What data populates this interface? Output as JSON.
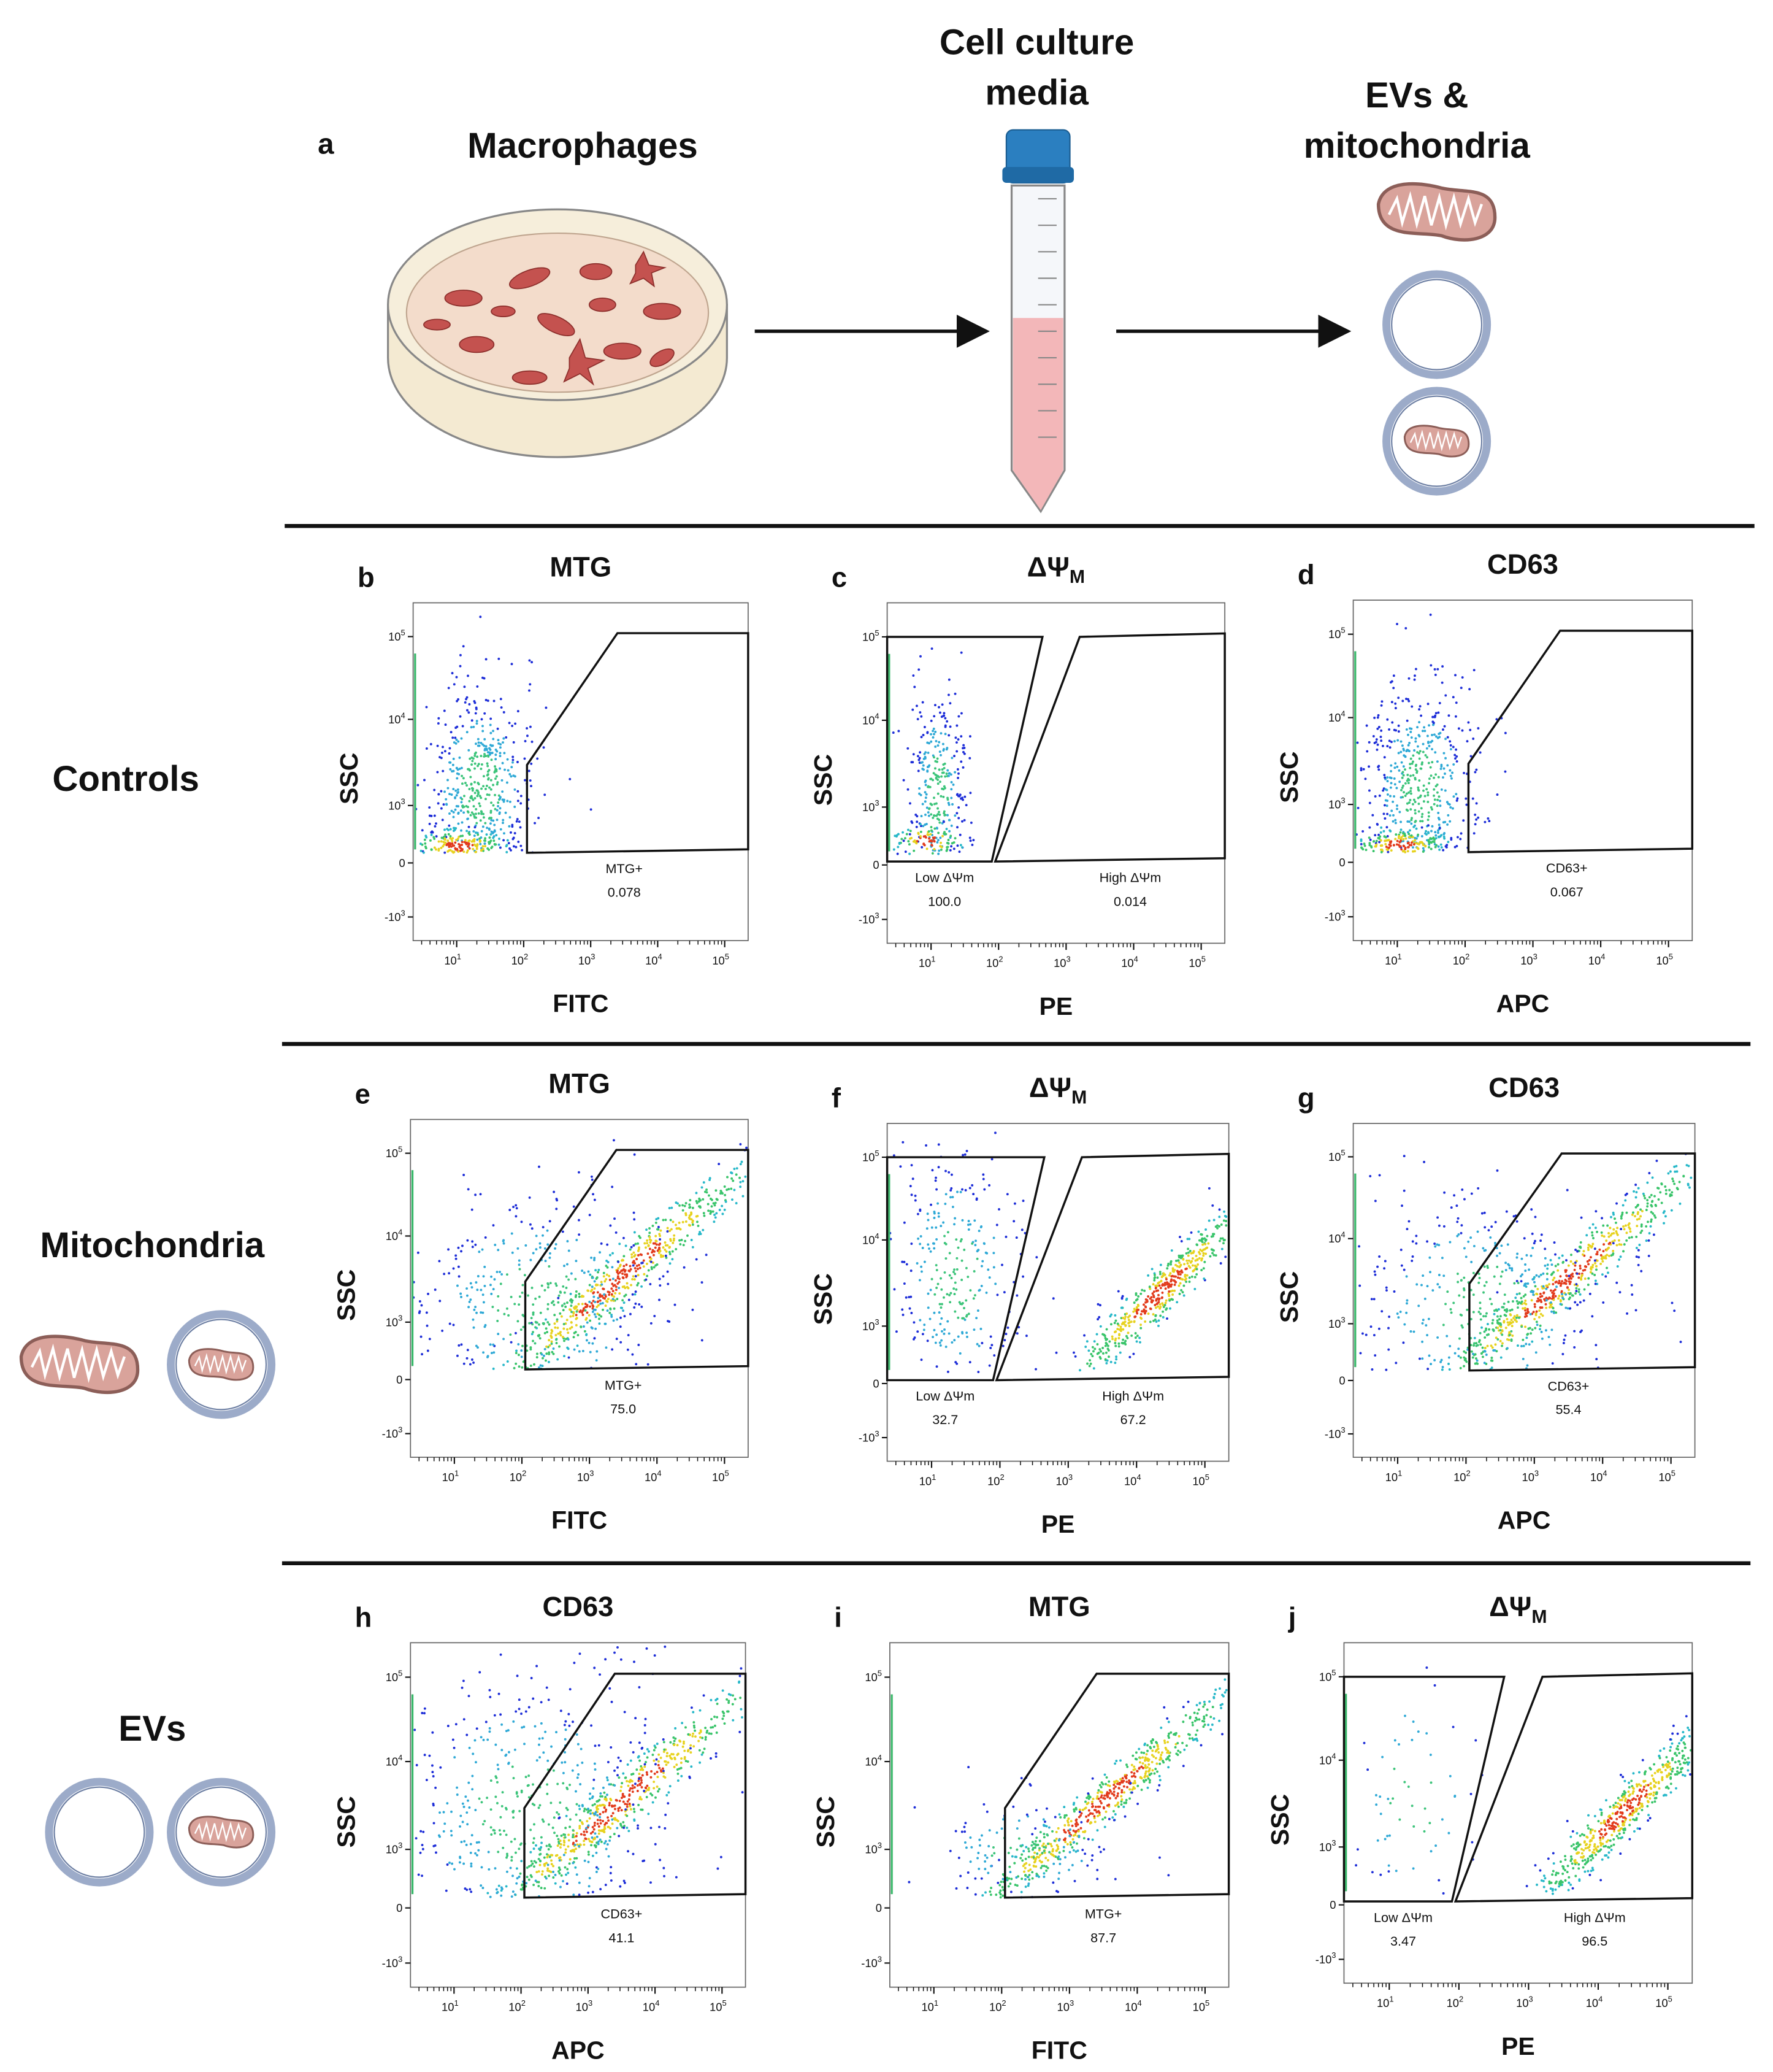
{
  "panel_a": {
    "label": "a",
    "macrophages": "Macrophages",
    "media": [
      "Cell culture",
      "media"
    ],
    "evs": [
      "EVs &",
      "mitochondria"
    ]
  },
  "row_labels": [
    "Controls",
    "Mitochondria",
    "EVs"
  ],
  "axis_ticks": {
    "y": [
      {
        "base": "10",
        "exp": "5"
      },
      {
        "base": "10",
        "exp": "4"
      },
      {
        "base": "10",
        "exp": "3"
      },
      {
        "base": "0"
      },
      {
        "base": "-10",
        "exp": "3"
      }
    ],
    "x": [
      {
        "base": "10",
        "exp": "1"
      },
      {
        "base": "10",
        "exp": "2"
      },
      {
        "base": "10",
        "exp": "3"
      },
      {
        "base": "10",
        "exp": "4"
      },
      {
        "base": "10",
        "exp": "5"
      }
    ]
  },
  "panels": [
    {
      "label": "b",
      "title": "MTG",
      "y_label": "SSC",
      "x_label": "FITC",
      "gates": [
        {
          "name": "MTG+",
          "value": "0.078"
        }
      ]
    },
    {
      "label": "c",
      "title": "ΔΨ",
      "title_sub": "M",
      "y_label": "SSC",
      "x_label": "PE",
      "gates": [
        {
          "name": "Low ΔΨm",
          "value": "100.0"
        },
        {
          "name": "High ΔΨm",
          "value": "0.014"
        }
      ]
    },
    {
      "label": "d",
      "title": "CD63",
      "y_label": "SSC",
      "x_label": "APC",
      "gates": [
        {
          "name": "CD63+",
          "value": "0.067"
        }
      ]
    },
    {
      "label": "e",
      "title": "MTG",
      "y_label": "SSC",
      "x_label": "FITC",
      "gates": [
        {
          "name": "MTG+",
          "value": "75.0"
        }
      ]
    },
    {
      "label": "f",
      "title": "ΔΨ",
      "title_sub": "M",
      "y_label": "SSC",
      "x_label": "PE",
      "gates": [
        {
          "name": "Low ΔΨm",
          "value": "32.7"
        },
        {
          "name": "High ΔΨm",
          "value": "67.2"
        }
      ]
    },
    {
      "label": "g",
      "title": "CD63",
      "y_label": "SSC",
      "x_label": "APC",
      "gates": [
        {
          "name": "CD63+",
          "value": "55.4"
        }
      ]
    },
    {
      "label": "h",
      "title": "CD63",
      "y_label": "SSC",
      "x_label": "APC",
      "gates": [
        {
          "name": "CD63+",
          "value": "41.1"
        }
      ]
    },
    {
      "label": "i",
      "title": "MTG",
      "y_label": "SSC",
      "x_label": "FITC",
      "gates": [
        {
          "name": "MTG+",
          "value": "87.7"
        }
      ]
    },
    {
      "label": "j",
      "title": "ΔΨ",
      "title_sub": "M",
      "y_label": "SSC",
      "x_label": "PE",
      "gates": [
        {
          "name": "Low ΔΨm",
          "value": "3.47"
        },
        {
          "name": "High ΔΨm",
          "value": "96.5"
        }
      ]
    }
  ]
}
